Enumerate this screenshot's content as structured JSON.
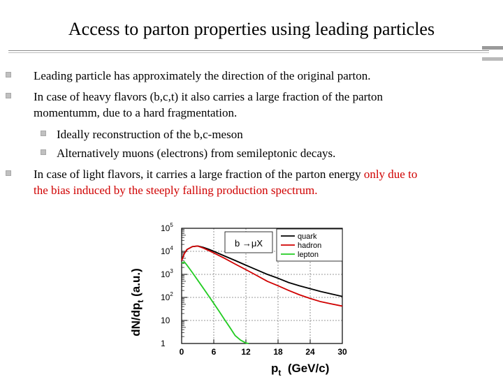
{
  "slide": {
    "title": "Access to parton properties using leading particles"
  },
  "bullets": [
    {
      "text": "Leading particle has approximately the direction of the original parton."
    },
    {
      "line1": "In case of heavy flavors (b,c,t) it also carries a large fraction of the parton",
      "line2": "momentumm, due to a hard fragmentation."
    },
    {
      "text": "Ideally reconstruction of the b,c-meson"
    },
    {
      "text": "Alternatively muons (electrons) from semileptonic decays."
    },
    {
      "line1_black": "In case of light flavors, it carries a large fraction of the parton energy ",
      "line1_red": "only due to",
      "line2_red": "the bias induced by the steeply falling production spectrum."
    }
  ],
  "colors": {
    "accent_red": "#d00000",
    "bullet_square": "#c0c0c0"
  },
  "chart_data": {
    "type": "line",
    "ylabel_main": "dN/dp",
    "ylabel_sub": "t",
    "ylabel_rest": " (a.u.)",
    "xlabel_main": "p",
    "xlabel_sub": "t",
    "xlabel_rest": "  (GeV/c)",
    "annotation": "b →μX",
    "y_log": true,
    "ylim": [
      1,
      100000
    ],
    "xlim": [
      0,
      30
    ],
    "x_ticks": [
      "0",
      "6",
      "12",
      "18",
      "24",
      "30"
    ],
    "x_tick_values": [
      0,
      6,
      12,
      18,
      24,
      30
    ],
    "y_ticks": [
      {
        "value": 100000,
        "base": "10",
        "exp": "5"
      },
      {
        "value": 10000,
        "base": "10",
        "exp": "4"
      },
      {
        "value": 1000,
        "base": "10",
        "exp": "3"
      },
      {
        "value": 100,
        "base": "10",
        "exp": "2"
      },
      {
        "value": 10,
        "base": "10",
        "exp": ""
      },
      {
        "value": 1,
        "base": "1",
        "exp": ""
      }
    ],
    "grid": true,
    "legend_position": "top-right",
    "series": [
      {
        "name": "quark",
        "color": "#000000",
        "x": [
          0,
          0.5,
          1,
          2,
          3,
          4,
          5,
          6,
          8,
          10,
          12,
          14,
          16,
          18,
          20,
          22,
          24,
          26,
          28,
          30
        ],
        "y": [
          4000,
          8000,
          12000,
          16000,
          17000,
          15000,
          12500,
          10000,
          6300,
          4000,
          2500,
          1580,
          1000,
          680,
          440,
          320,
          240,
          180,
          140,
          110
        ]
      },
      {
        "name": "hadron",
        "color": "#d00000",
        "x": [
          0,
          0.5,
          1,
          2,
          3,
          4,
          5,
          6,
          8,
          10,
          12,
          14,
          16,
          18,
          20,
          22,
          24,
          26,
          28,
          30
        ],
        "y": [
          4000,
          8000,
          12000,
          16000,
          17000,
          14000,
          11000,
          8500,
          5000,
          2800,
          1600,
          900,
          500,
          320,
          200,
          130,
          90,
          65,
          52,
          42
        ]
      },
      {
        "name": "lepton",
        "color": "#22cc22",
        "x": [
          0,
          0.5,
          1,
          2,
          3,
          4,
          5,
          6,
          7,
          8,
          9,
          10,
          11,
          12,
          12.5
        ],
        "y": [
          3000,
          3500,
          2500,
          1200,
          560,
          260,
          120,
          55,
          25,
          11,
          5,
          2.2,
          1.4,
          1.05,
          1
        ]
      }
    ]
  }
}
